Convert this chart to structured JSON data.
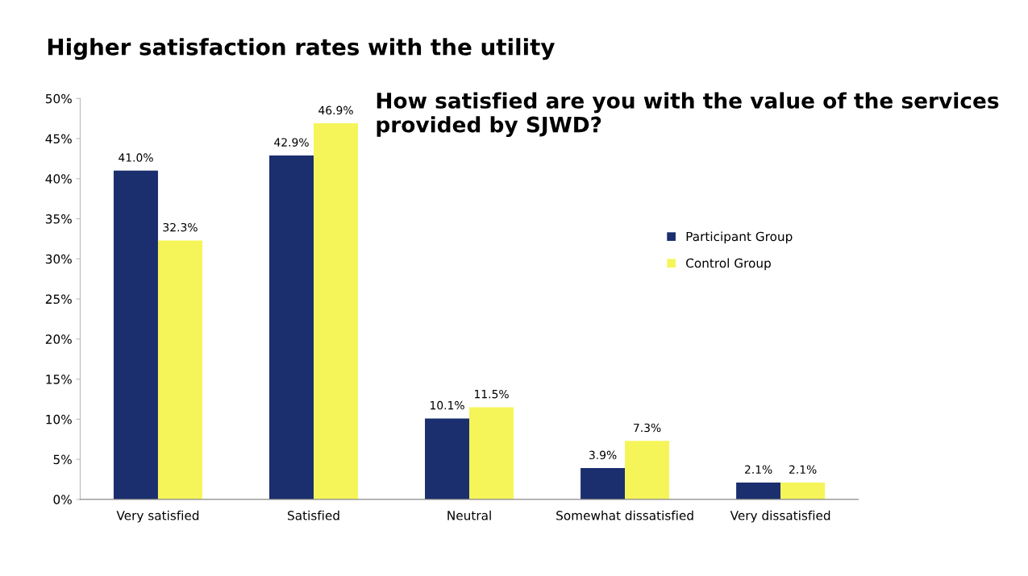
{
  "chart_data": {
    "type": "bar",
    "title": "Higher satisfaction rates with the utility",
    "subtitle": "How satisfied are you with the value of the services provided by SJWD?",
    "categories": [
      "Very satisfied",
      "Satisfied",
      "Neutral",
      "Somewhat dissatisfied",
      "Very dissatisfied"
    ],
    "series": [
      {
        "name": "Participant Group",
        "color": "#1b2f6e",
        "values": [
          41.0,
          42.9,
          10.1,
          3.9,
          2.1
        ],
        "value_labels": [
          "41.0%",
          "42.9%",
          "10.1%",
          "3.9%",
          "2.1%"
        ]
      },
      {
        "name": "Control Group",
        "color": "#f5f55a",
        "values": [
          32.3,
          46.9,
          11.5,
          7.3,
          2.1
        ],
        "value_labels": [
          "32.3%",
          "46.9%",
          "11.5%",
          "7.3%",
          "2.1%"
        ]
      }
    ],
    "ylim": [
      0,
      50
    ],
    "yticks": [
      {
        "value": 0,
        "label": "0%"
      },
      {
        "value": 5,
        "label": "5%"
      },
      {
        "value": 10,
        "label": "10%"
      },
      {
        "value": 15,
        "label": "15%"
      },
      {
        "value": 20,
        "label": "20%"
      },
      {
        "value": 25,
        "label": "25%"
      },
      {
        "value": 30,
        "label": "30%"
      },
      {
        "value": 35,
        "label": "35%"
      },
      {
        "value": 40,
        "label": "40%"
      },
      {
        "value": 45,
        "label": "45%"
      },
      {
        "value": 50,
        "label": "50%"
      }
    ],
    "grid": false,
    "legend": "right"
  }
}
